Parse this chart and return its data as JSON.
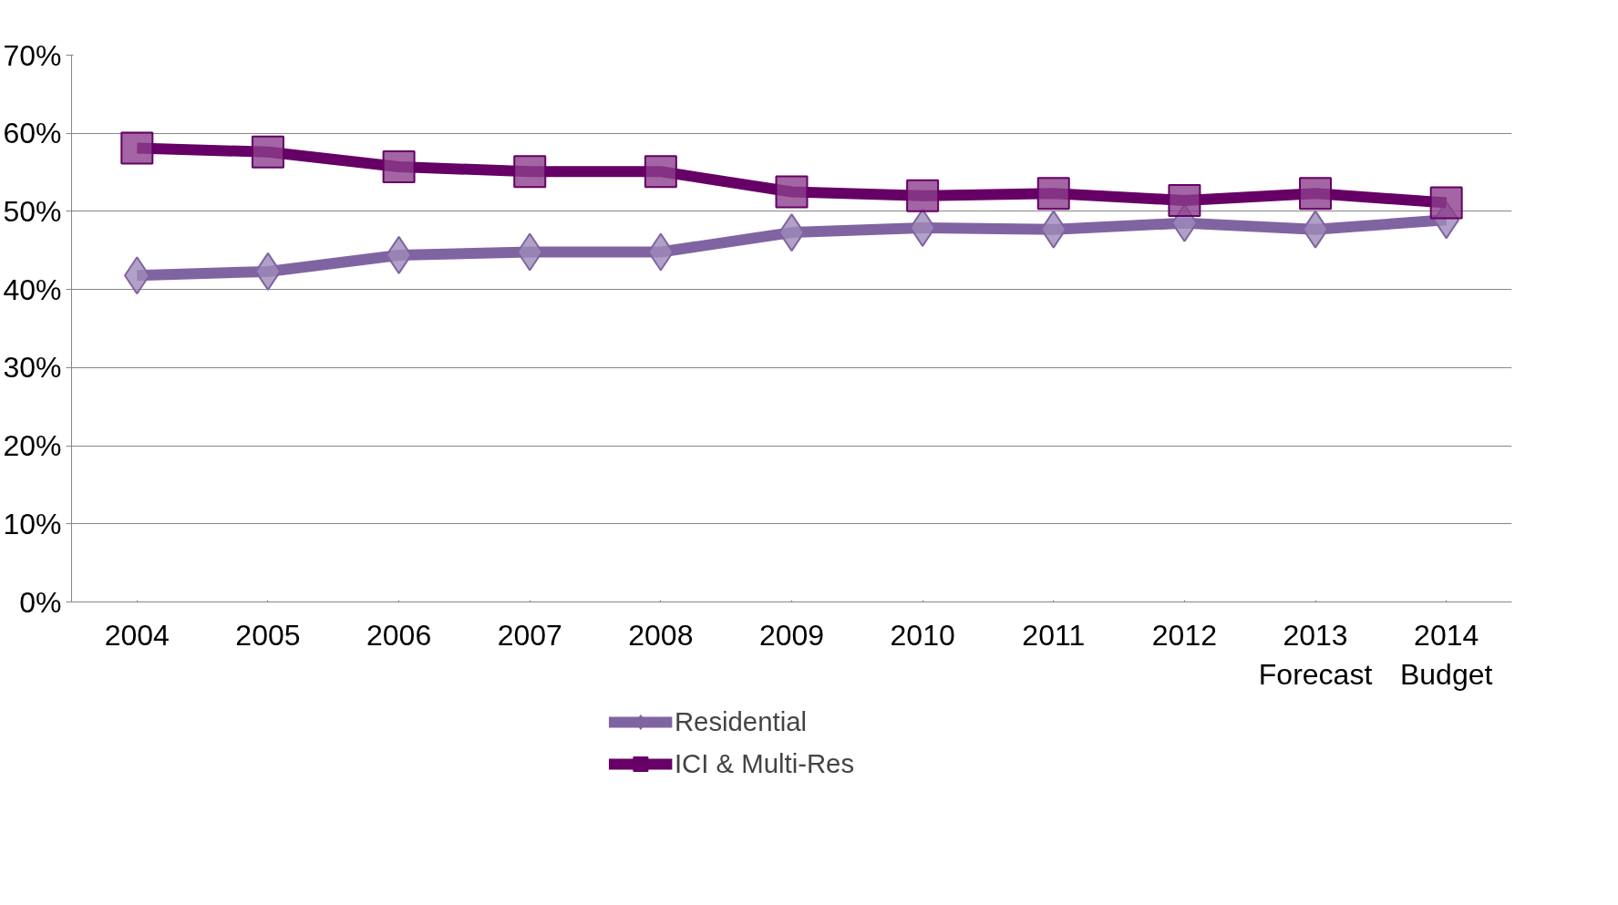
{
  "chart_data": {
    "type": "line",
    "categories": [
      "2004",
      "2005",
      "2006",
      "2007",
      "2008",
      "2009",
      "2010",
      "2011",
      "2012",
      "2013\nForecast",
      "2014\nBudget"
    ],
    "series": [
      {
        "name": "Residential",
        "color": "#8064a2",
        "marker": "diamond",
        "values": [
          41.8,
          42.3,
          44.4,
          44.8,
          44.8,
          47.3,
          47.9,
          47.7,
          48.5,
          47.7,
          48.9
        ]
      },
      {
        "name": "ICI & Multi-Res",
        "color": "#660066",
        "marker": "square",
        "values": [
          58.1,
          57.6,
          55.7,
          55.1,
          55.1,
          52.5,
          52.0,
          52.3,
          51.4,
          52.3,
          51.1
        ]
      }
    ],
    "ylim": [
      0,
      70
    ],
    "yticks": [
      {
        "value": 0,
        "label": "0%"
      },
      {
        "value": 10,
        "label": "10%"
      },
      {
        "value": 20,
        "label": "20%"
      },
      {
        "value": 30,
        "label": "30%"
      },
      {
        "value": 40,
        "label": "40%"
      },
      {
        "value": 50,
        "label": "50%"
      },
      {
        "value": 60,
        "label": "60%"
      },
      {
        "value": 70,
        "label": "70%"
      }
    ],
    "grid": "y",
    "legend": "bottom",
    "line_style": "solid"
  }
}
